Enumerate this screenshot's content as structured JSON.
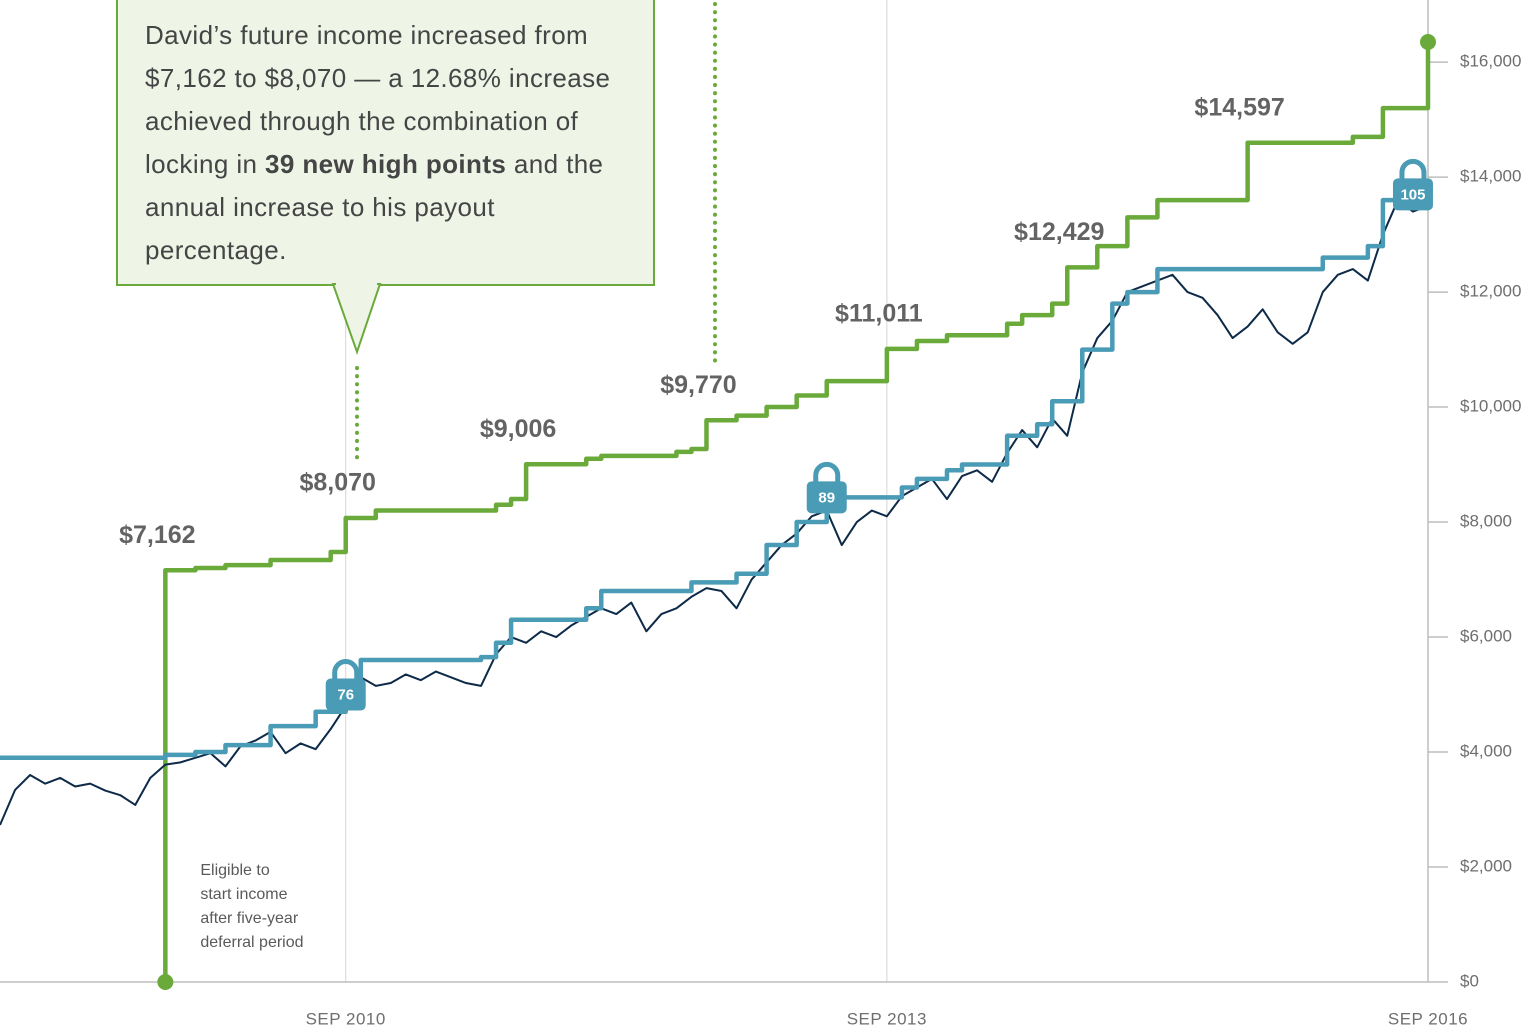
{
  "chart_data": {
    "type": "line",
    "ylim": [
      0,
      17080
    ],
    "yticks": [
      {
        "value": 0,
        "label": "$0"
      },
      {
        "value": 2000,
        "label": "$2,000"
      },
      {
        "value": 4000,
        "label": "$4,000"
      },
      {
        "value": 6000,
        "label": "$6,000"
      },
      {
        "value": 8000,
        "label": "$8,000"
      },
      {
        "value": 10000,
        "label": "$10,000"
      },
      {
        "value": 12000,
        "label": "$12,000"
      },
      {
        "value": 14000,
        "label": "$14,000"
      },
      {
        "value": 16000,
        "label": "$16,000"
      }
    ],
    "xlim": [
      "2008-10",
      "2016-09"
    ],
    "xticks": [
      {
        "value": "2010-09",
        "label": "SEP 2010"
      },
      {
        "value": "2013-09",
        "label": "SEP 2013"
      },
      {
        "value": "2016-09",
        "label": "SEP 2016"
      }
    ],
    "grid": "x",
    "series": [
      {
        "color": "#6aaa3a",
        "step": true,
        "endpoints": true,
        "x": [
          "2009-09",
          "2009-09",
          "2009-11",
          "2010-01",
          "2010-04",
          "2010-08",
          "2010-09",
          "2010-11",
          "2011-07",
          "2011-08",
          "2011-09",
          "2012-01",
          "2012-02",
          "2012-07",
          "2012-08",
          "2012-09",
          "2012-11",
          "2013-01",
          "2013-03",
          "2013-05",
          "2013-09",
          "2013-11",
          "2014-01",
          "2014-05",
          "2014-06",
          "2014-08",
          "2014-09",
          "2014-11",
          "2015-01",
          "2015-03",
          "2015-09",
          "2016-04",
          "2016-06",
          "2016-09"
        ],
        "values": [
          0,
          7162,
          7200,
          7250,
          7340,
          7480,
          8070,
          8200,
          8300,
          8400,
          9006,
          9100,
          9150,
          9220,
          9270,
          9770,
          9850,
          10000,
          10200,
          10450,
          11011,
          11150,
          11250,
          11450,
          11600,
          11800,
          12429,
          12800,
          13300,
          13600,
          14597,
          14700,
          15200,
          16350
        ],
        "value_labels": [
          null,
          "$7,162",
          null,
          null,
          null,
          null,
          "$8,070",
          null,
          null,
          null,
          "$9,006",
          null,
          null,
          null,
          null,
          "$9,770",
          null,
          null,
          null,
          null,
          "$11,011",
          null,
          null,
          null,
          null,
          null,
          "$12,429",
          null,
          null,
          null,
          "$14,597",
          null,
          null,
          null
        ]
      },
      {
        "color": "#0d2a48",
        "step": false,
        "x": [
          "2008-10",
          "2008-11",
          "2008-12",
          "2009-01",
          "2009-02",
          "2009-03",
          "2009-04",
          "2009-05",
          "2009-06",
          "2009-07",
          "2009-08",
          "2009-09",
          "2009-10",
          "2009-11",
          "2009-12",
          "2010-01",
          "2010-02",
          "2010-03",
          "2010-04",
          "2010-05",
          "2010-06",
          "2010-07",
          "2010-08",
          "2010-09",
          "2010-10",
          "2010-11",
          "2010-12",
          "2011-01",
          "2011-02",
          "2011-03",
          "2011-04",
          "2011-05",
          "2011-06",
          "2011-07",
          "2011-08",
          "2011-09",
          "2011-10",
          "2011-11",
          "2011-12",
          "2012-01",
          "2012-02",
          "2012-03",
          "2012-04",
          "2012-05",
          "2012-06",
          "2012-07",
          "2012-08",
          "2012-09",
          "2012-10",
          "2012-11",
          "2012-12",
          "2013-01",
          "2013-02",
          "2013-03",
          "2013-04",
          "2013-05",
          "2013-06",
          "2013-07",
          "2013-08",
          "2013-09",
          "2013-10",
          "2013-11",
          "2013-12",
          "2014-01",
          "2014-02",
          "2014-03",
          "2014-04",
          "2014-05",
          "2014-06",
          "2014-07",
          "2014-08",
          "2014-09",
          "2014-10",
          "2014-11",
          "2014-12",
          "2015-01",
          "2015-02",
          "2015-03",
          "2015-04",
          "2015-05",
          "2015-06",
          "2015-07",
          "2015-08",
          "2015-09",
          "2015-10",
          "2015-11",
          "2015-12",
          "2016-01",
          "2016-02",
          "2016-03",
          "2016-04",
          "2016-05",
          "2016-06",
          "2016-07",
          "2016-08",
          "2016-09"
        ],
        "values": [
          2730,
          3340,
          3600,
          3450,
          3550,
          3400,
          3450,
          3330,
          3250,
          3080,
          3550,
          3780,
          3820,
          3900,
          3980,
          3750,
          4100,
          4200,
          4350,
          3980,
          4150,
          4050,
          4400,
          4800,
          5300,
          5150,
          5200,
          5350,
          5250,
          5400,
          5300,
          5200,
          5150,
          5700,
          6000,
          5900,
          6100,
          6000,
          6200,
          6350,
          6500,
          6400,
          6600,
          6100,
          6400,
          6500,
          6700,
          6850,
          6800,
          6500,
          7000,
          7300,
          7600,
          7800,
          8100,
          8200,
          7600,
          8000,
          8200,
          8100,
          8450,
          8600,
          8750,
          8400,
          8800,
          8900,
          8700,
          9200,
          9600,
          9300,
          9800,
          9500,
          10600,
          11200,
          11500,
          12000,
          12100,
          12200,
          12300,
          12000,
          11900,
          11600,
          11200,
          11400,
          11700,
          11300,
          11100,
          11300,
          12000,
          12300,
          12400,
          12200,
          13000,
          13600,
          13400,
          13500
        ]
      },
      {
        "color": "#4a9bb5",
        "step": true,
        "x": [
          "2008-10",
          "2009-09",
          "2009-11",
          "2010-01",
          "2010-04",
          "2010-07",
          "2010-09",
          "2010-10",
          "2011-06",
          "2011-07",
          "2011-08",
          "2012-01",
          "2012-02",
          "2012-08",
          "2012-11",
          "2013-01",
          "2013-03",
          "2013-05",
          "2013-10",
          "2013-11",
          "2014-01",
          "2014-02",
          "2014-05",
          "2014-07",
          "2014-08",
          "2014-10",
          "2014-12",
          "2015-01",
          "2015-03",
          "2016-02",
          "2016-05",
          "2016-06",
          "2016-08"
        ],
        "values": [
          3900,
          3950,
          4000,
          4120,
          4450,
          4700,
          5000,
          5600,
          5650,
          5900,
          6300,
          6500,
          6800,
          6950,
          7100,
          7600,
          8000,
          8430,
          8600,
          8750,
          8900,
          9000,
          9500,
          9700,
          10100,
          11000,
          11800,
          12000,
          12400,
          12600,
          12800,
          13600,
          13700
        ]
      }
    ],
    "locks": [
      {
        "x": "2010-09",
        "value": 5000,
        "count": 76
      },
      {
        "x": "2013-05",
        "value": 8430,
        "count": 89
      },
      {
        "x": "2016-08",
        "value": 13700,
        "count": 105
      }
    ],
    "callout": [
      {
        "text": "David’s future income increased from $7,162 to $8,070 — a 12.68% increase achieved through the combination of locking in "
      },
      {
        "text": "39 new high points",
        "bold": true
      },
      {
        "text": " and the annual increase to his payout percentage."
      }
    ],
    "note": [
      "Eligible to",
      "start income",
      "after five-year",
      "deferral period"
    ]
  }
}
